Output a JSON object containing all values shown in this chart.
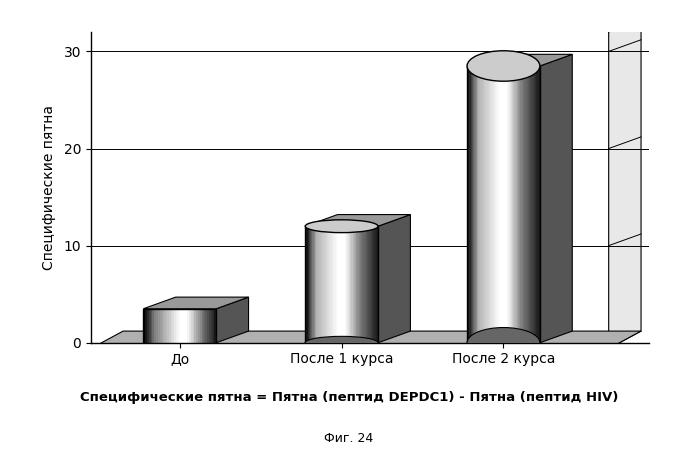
{
  "categories": [
    "До",
    "После 1 курса",
    "После 2 курса"
  ],
  "values": [
    3.5,
    12.0,
    28.5
  ],
  "ylim": [
    0,
    32
  ],
  "yticks": [
    0,
    10,
    20,
    30
  ],
  "ylabel": "Специфические пятна",
  "subtitle": "Специфические пятна = Пятна (пептид DEPDC1) - Пятна (пептид HIV)",
  "fig_caption": "Фиг. 24",
  "platform_color": "#aaaaaa",
  "platform_top_color": "#bbbbbb",
  "platform_side_color": "#888888",
  "wall_color": "#ffffff",
  "bar_light": "#ffffff",
  "bar_dark": "#333333",
  "bar_edge": "#000000",
  "top_dark": "#888888",
  "top_light": "#dddddd"
}
